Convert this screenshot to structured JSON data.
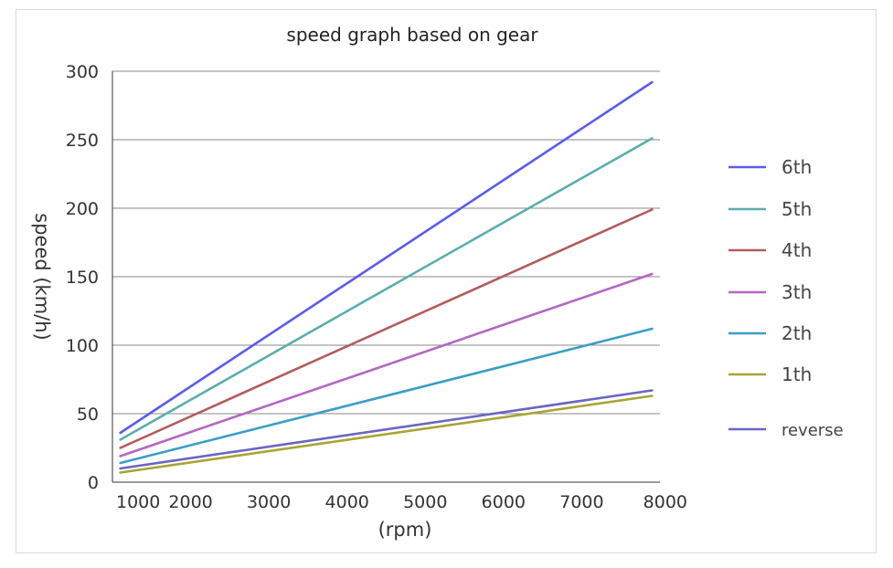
{
  "chart_data": {
    "type": "line",
    "title": "speed graph based on gear",
    "xlabel": "(rpm)",
    "ylabel": "speed (km/h)",
    "xlim": [
      1000,
      8000
    ],
    "ylim": [
      0,
      300
    ],
    "x_ticks": [
      "1000",
      "2000",
      "3000",
      "4000",
      "5000",
      "6000",
      "7000",
      "8000"
    ],
    "y_ticks": [
      "0",
      "50",
      "100",
      "150",
      "200",
      "250",
      "300"
    ],
    "grid": true,
    "legend_position": "right",
    "series": [
      {
        "name": "6th",
        "color": "#5b5bf0",
        "x": [
          1100,
          7900
        ],
        "y": [
          36,
          292
        ]
      },
      {
        "name": "5th",
        "color": "#5aaeac",
        "x": [
          1100,
          7900
        ],
        "y": [
          31,
          251
        ]
      },
      {
        "name": "4th",
        "color": "#b35b5b",
        "x": [
          1100,
          7900
        ],
        "y": [
          25,
          199
        ]
      },
      {
        "name": "3th",
        "color": "#b565c4",
        "x": [
          1100,
          7900
        ],
        "y": [
          19,
          152
        ]
      },
      {
        "name": "2th",
        "color": "#3a9ec7",
        "x": [
          1100,
          7900
        ],
        "y": [
          14,
          112
        ]
      },
      {
        "name": "1th",
        "color": "#a8a434",
        "x": [
          1100,
          7900
        ],
        "y": [
          7,
          63
        ]
      },
      {
        "name": "reverse",
        "color": "#6a66c4",
        "x": [
          1100,
          7900
        ],
        "y": [
          10,
          67
        ]
      }
    ]
  }
}
